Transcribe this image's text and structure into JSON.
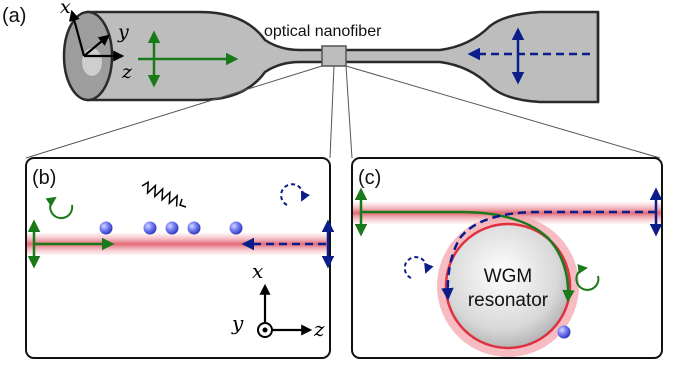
{
  "panels": {
    "a": {
      "label": "(a)",
      "nanofiber_label": "optical nanofiber"
    },
    "b": {
      "label": "(b)"
    },
    "c": {
      "label": "(c)",
      "resonator_line1": "WGM",
      "resonator_line2": "resonator"
    }
  },
  "axes": {
    "a": {
      "x": "x",
      "y": "y",
      "z": "z"
    },
    "b": {
      "x": "x",
      "y": "y",
      "z": "z"
    }
  },
  "colors": {
    "forward_mode": "#1a7a1a",
    "backward_mode": "#0a1d8a",
    "fiber_gray": "#bdbdbd",
    "field_glow": "#e06070",
    "atom": "#5a64e8"
  }
}
